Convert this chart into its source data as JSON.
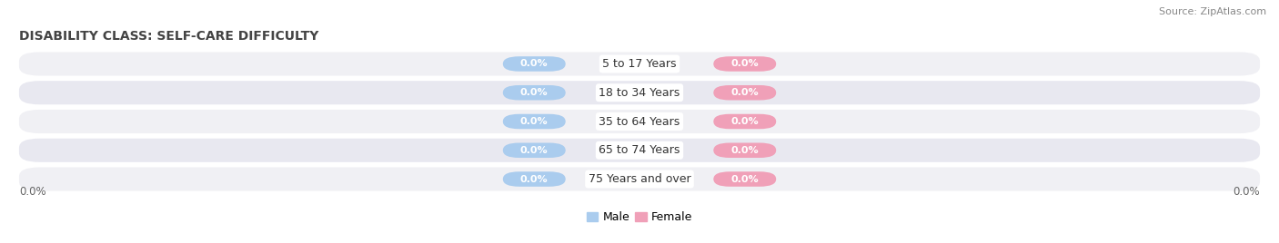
{
  "title": "DISABILITY CLASS: SELF-CARE DIFFICULTY",
  "source": "Source: ZipAtlas.com",
  "categories": [
    "5 to 17 Years",
    "18 to 34 Years",
    "35 to 64 Years",
    "65 to 74 Years",
    "75 Years and over"
  ],
  "male_values": [
    0.0,
    0.0,
    0.0,
    0.0,
    0.0
  ],
  "female_values": [
    0.0,
    0.0,
    0.0,
    0.0,
    0.0
  ],
  "male_color": "#aaccee",
  "female_color": "#f0a0b8",
  "row_colors": [
    "#f0f0f4",
    "#e8e8f0"
  ],
  "left_label": "0.0%",
  "right_label": "0.0%",
  "title_fontsize": 10,
  "source_fontsize": 8,
  "bar_value_fontsize": 8,
  "cat_label_fontsize": 9,
  "legend_fontsize": 9,
  "background_color": "#ffffff"
}
